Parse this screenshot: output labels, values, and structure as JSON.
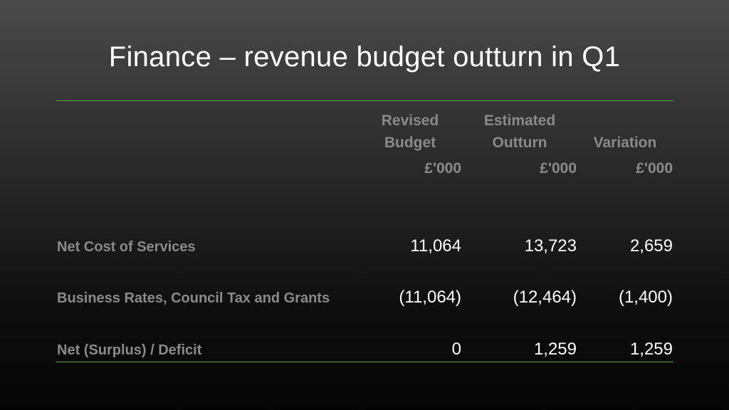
{
  "slide": {
    "title": "Finance – revenue budget outturn in Q1"
  },
  "table": {
    "columns": [
      {
        "line1": "Revised",
        "line2": "Budget",
        "unit": "£'000"
      },
      {
        "line1": "Estimated",
        "line2": "Outturn",
        "unit": "£'000"
      },
      {
        "line1": "",
        "line2": "Variation",
        "unit": "£'000"
      }
    ],
    "rows": [
      {
        "label": "Net Cost of Services",
        "values": [
          "11,064",
          "13,723",
          "2,659"
        ]
      },
      {
        "label": "Business Rates, Council Tax and Grants",
        "values": [
          "(11,064)",
          "(12,464)",
          "(1,400)"
        ]
      },
      {
        "label": "Net (Surplus) / Deficit",
        "values": [
          "0",
          "1,259",
          "1,259"
        ]
      }
    ]
  },
  "colors": {
    "title": "#ffffff",
    "header_text": "#8a8a8a",
    "value_text": "#ffffff",
    "rule": "#6e9a50"
  }
}
